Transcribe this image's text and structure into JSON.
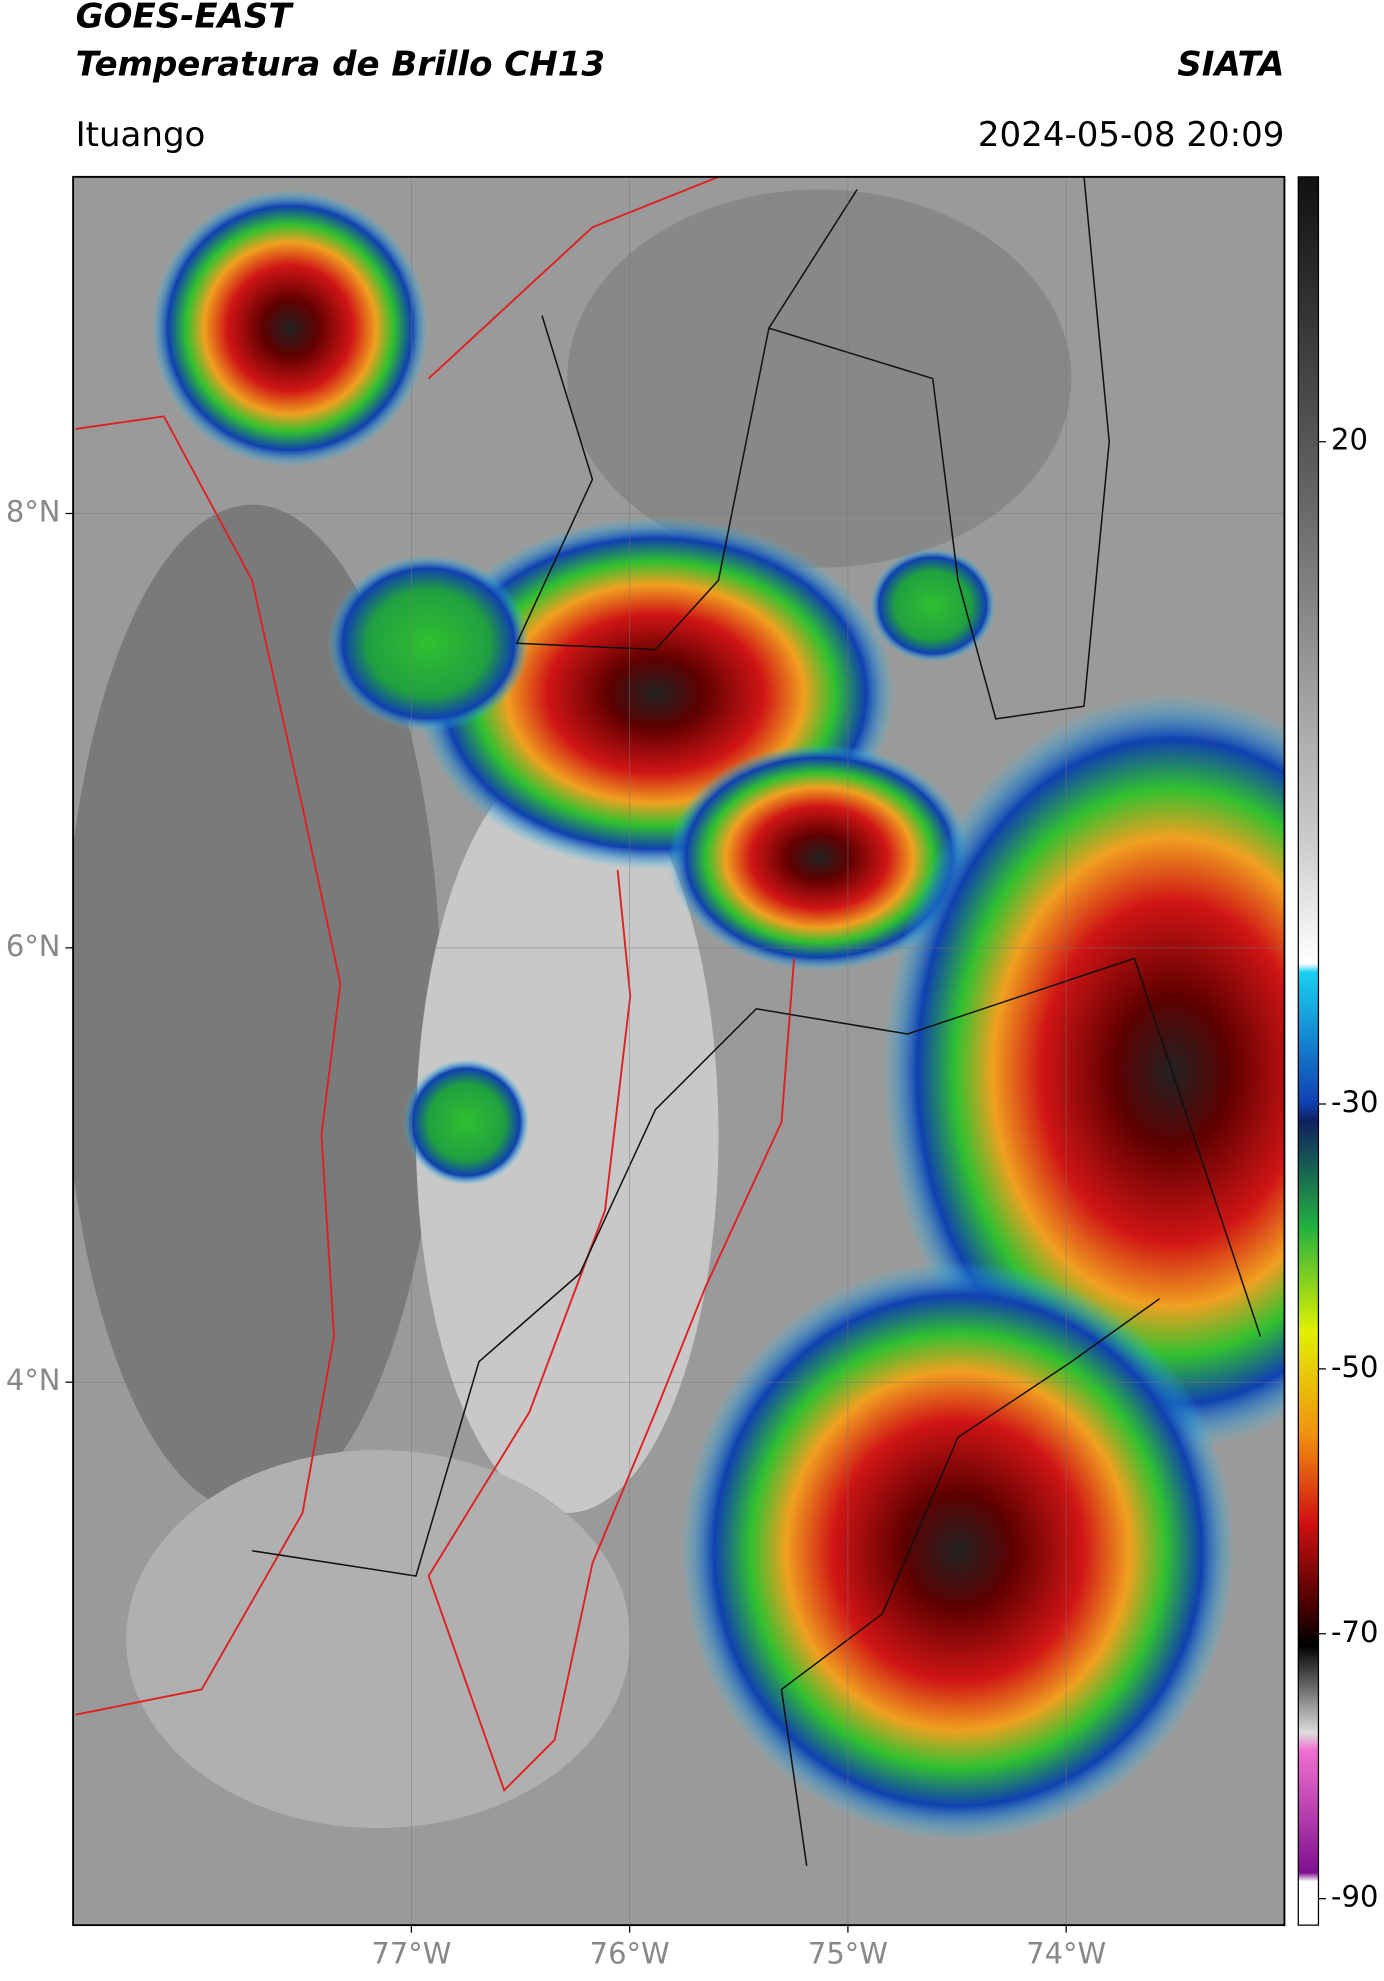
{
  "title": "GOES-EAST",
  "subtitle": "Temperatura de Brillo CH13",
  "source": "SIATA",
  "location": "Ituango",
  "datetime": "2024-05-08 20:09",
  "map": {
    "xlim": [
      -78.55,
      -73.0
    ],
    "ylim": [
      1.5,
      9.55
    ],
    "xticks": [
      {
        "value": -77,
        "label": "77°W"
      },
      {
        "value": -76,
        "label": "76°W"
      },
      {
        "value": -75,
        "label": "75°W"
      },
      {
        "value": -74,
        "label": "74°W"
      }
    ],
    "yticks": [
      {
        "value": 8,
        "label": "8°N"
      },
      {
        "value": 6,
        "label": "6°N"
      },
      {
        "value": 4,
        "label": "4°N"
      }
    ],
    "grid": true
  },
  "colorbar": {
    "lim": [
      40,
      -92
    ],
    "ticks": [
      20,
      -30,
      -50,
      -70,
      -90
    ]
  }
}
